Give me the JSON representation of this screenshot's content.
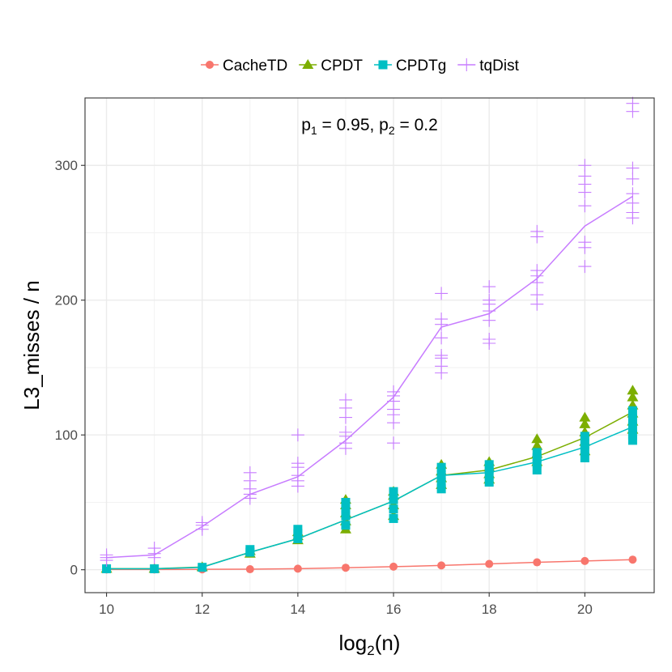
{
  "chart_data": {
    "type": "line",
    "title": "",
    "xlabel": "log",
    "xlabel_subscript": "2",
    "xlabel_suffix": "(n)",
    "ylabel": "L3_misses / n",
    "xlim": [
      9.55,
      21.45
    ],
    "ylim": [
      -17,
      350
    ],
    "x_ticks": [
      10,
      12,
      14,
      16,
      18,
      20
    ],
    "y_ticks": [
      0,
      100,
      200,
      300
    ],
    "annotation": {
      "p1_label": "p",
      "p1_sub": "1",
      "p1_value": " = 0.95, ",
      "p2_label": "p",
      "p2_sub": "2",
      "p2_value": " = 0.2"
    },
    "legend": {
      "position": "top",
      "entries": [
        "CacheTD",
        "CPDT",
        "CPDTg",
        "tqDist"
      ]
    },
    "series": [
      {
        "name": "CacheTD",
        "color": "#F8766D",
        "marker": "circle",
        "x": [
          10,
          11,
          12,
          13,
          14,
          15,
          16,
          17,
          18,
          19,
          20,
          21
        ],
        "values": [
          0.2,
          0.2,
          0.3,
          0.4,
          0.8,
          1.5,
          2.3,
          3.2,
          4.3,
          5.5,
          6.5,
          7.5
        ],
        "points": [
          [
            10,
            0.2
          ],
          [
            11,
            0.2
          ],
          [
            12,
            0.3
          ],
          [
            13,
            0.4
          ],
          [
            14,
            0.8
          ],
          [
            15,
            1.5
          ],
          [
            16,
            2.3
          ],
          [
            17,
            3.2
          ],
          [
            18,
            4.3
          ],
          [
            19,
            5.5
          ],
          [
            20,
            6.5
          ],
          [
            21,
            7.5
          ]
        ]
      },
      {
        "name": "CPDT",
        "color": "#7CAE00",
        "marker": "triangle",
        "x": [
          10,
          11,
          12,
          13,
          14,
          15,
          16,
          17,
          18,
          19,
          20,
          21
        ],
        "values": [
          0.8,
          0.8,
          2.0,
          13,
          23,
          37,
          51,
          70,
          74,
          84,
          98,
          117
        ],
        "points": [
          [
            10,
            0.8
          ],
          [
            11,
            0.8
          ],
          [
            12,
            2.0
          ],
          [
            13,
            12
          ],
          [
            13,
            14
          ],
          [
            14,
            22
          ],
          [
            14,
            25
          ],
          [
            14,
            28
          ],
          [
            15,
            30
          ],
          [
            15,
            36
          ],
          [
            15,
            42
          ],
          [
            15,
            48
          ],
          [
            15,
            52
          ],
          [
            16,
            40
          ],
          [
            16,
            48
          ],
          [
            16,
            55
          ],
          [
            16,
            58
          ],
          [
            17,
            63
          ],
          [
            17,
            68
          ],
          [
            17,
            73
          ],
          [
            17,
            78
          ],
          [
            18,
            67
          ],
          [
            18,
            71
          ],
          [
            18,
            76
          ],
          [
            18,
            80
          ],
          [
            19,
            80
          ],
          [
            19,
            86
          ],
          [
            19,
            92
          ],
          [
            19,
            97
          ],
          [
            20,
            88
          ],
          [
            20,
            95
          ],
          [
            20,
            102
          ],
          [
            20,
            108
          ],
          [
            20,
            113
          ],
          [
            21,
            104
          ],
          [
            21,
            110
          ],
          [
            21,
            116
          ],
          [
            21,
            122
          ],
          [
            21,
            128
          ],
          [
            21,
            133
          ]
        ]
      },
      {
        "name": "CPDTg",
        "color": "#00BFC4",
        "marker": "square",
        "x": [
          10,
          11,
          12,
          13,
          14,
          15,
          16,
          17,
          18,
          19,
          20,
          21
        ],
        "values": [
          0.7,
          0.7,
          1.8,
          13,
          23,
          37,
          51,
          70,
          72,
          80,
          91,
          106
        ],
        "points": [
          [
            10,
            0.7
          ],
          [
            11,
            0.7
          ],
          [
            12,
            1.8
          ],
          [
            13,
            13
          ],
          [
            13,
            15
          ],
          [
            14,
            23
          ],
          [
            14,
            27
          ],
          [
            14,
            30
          ],
          [
            15,
            33
          ],
          [
            15,
            40
          ],
          [
            15,
            46
          ],
          [
            15,
            50
          ],
          [
            16,
            38
          ],
          [
            16,
            45
          ],
          [
            16,
            52
          ],
          [
            16,
            58
          ],
          [
            17,
            60
          ],
          [
            17,
            65
          ],
          [
            17,
            70
          ],
          [
            17,
            76
          ],
          [
            18,
            65
          ],
          [
            18,
            70
          ],
          [
            18,
            75
          ],
          [
            18,
            78
          ],
          [
            19,
            74
          ],
          [
            19,
            79
          ],
          [
            19,
            83
          ],
          [
            19,
            87
          ],
          [
            20,
            83
          ],
          [
            20,
            88
          ],
          [
            20,
            93
          ],
          [
            20,
            99
          ],
          [
            21,
            96
          ],
          [
            21,
            100
          ],
          [
            21,
            106
          ],
          [
            21,
            112
          ],
          [
            21,
            118
          ]
        ]
      },
      {
        "name": "tqDist",
        "color": "#C77CFF",
        "marker": "plus",
        "x": [
          10,
          11,
          12,
          13,
          14,
          15,
          16,
          17,
          18,
          19,
          20,
          21
        ],
        "values": [
          9,
          11,
          32,
          56,
          69,
          96,
          128,
          180,
          190,
          216,
          255,
          277
        ],
        "points": [
          [
            10,
            7
          ],
          [
            10,
            9
          ],
          [
            10,
            11
          ],
          [
            11,
            9
          ],
          [
            11,
            12
          ],
          [
            11,
            16
          ],
          [
            12,
            30
          ],
          [
            12,
            33
          ],
          [
            12,
            35
          ],
          [
            13,
            53
          ],
          [
            13,
            56
          ],
          [
            13,
            60
          ],
          [
            13,
            66
          ],
          [
            13,
            72
          ],
          [
            14,
            62
          ],
          [
            14,
            66
          ],
          [
            14,
            70
          ],
          [
            14,
            76
          ],
          [
            14,
            79
          ],
          [
            14,
            100
          ],
          [
            15,
            90
          ],
          [
            15,
            94
          ],
          [
            15,
            99
          ],
          [
            15,
            102
          ],
          [
            15,
            113
          ],
          [
            15,
            120
          ],
          [
            15,
            126
          ],
          [
            16,
            94
          ],
          [
            16,
            109
          ],
          [
            16,
            115
          ],
          [
            16,
            119
          ],
          [
            16,
            125
          ],
          [
            16,
            129
          ],
          [
            16,
            132
          ],
          [
            17,
            146
          ],
          [
            17,
            151
          ],
          [
            17,
            157
          ],
          [
            17,
            159
          ],
          [
            17,
            172
          ],
          [
            17,
            182
          ],
          [
            17,
            186
          ],
          [
            17,
            205
          ],
          [
            18,
            168
          ],
          [
            18,
            171
          ],
          [
            18,
            185
          ],
          [
            18,
            192
          ],
          [
            18,
            197
          ],
          [
            18,
            200
          ],
          [
            18,
            210
          ],
          [
            19,
            197
          ],
          [
            19,
            204
          ],
          [
            19,
            213
          ],
          [
            19,
            218
          ],
          [
            19,
            222
          ],
          [
            19,
            247
          ],
          [
            19,
            251
          ],
          [
            20,
            225
          ],
          [
            20,
            239
          ],
          [
            20,
            243
          ],
          [
            20,
            270
          ],
          [
            20,
            280
          ],
          [
            20,
            286
          ],
          [
            20,
            292
          ],
          [
            20,
            300
          ],
          [
            21,
            261
          ],
          [
            21,
            265
          ],
          [
            21,
            272
          ],
          [
            21,
            279
          ],
          [
            21,
            290
          ],
          [
            21,
            298
          ],
          [
            21,
            340
          ],
          [
            21,
            346
          ]
        ]
      }
    ]
  }
}
